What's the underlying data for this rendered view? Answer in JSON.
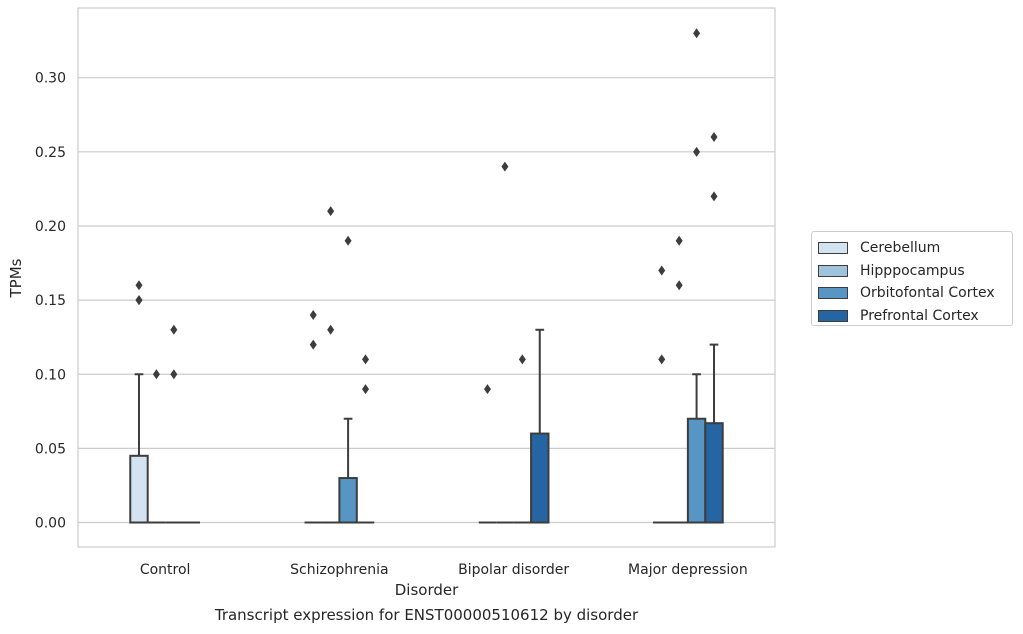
{
  "chart_data": {
    "type": "box",
    "title": "",
    "caption": "Transcript expression for ENST00000510612 by disorder",
    "xlabel": "Disorder",
    "ylabel": "TPMs",
    "ylim": [
      -0.0165,
      0.347
    ],
    "yticks": [
      "0.00",
      "0.05",
      "0.10",
      "0.15",
      "0.20",
      "0.25",
      "0.30"
    ],
    "grid": true,
    "legend_position": "right",
    "categories": [
      "Control",
      "Schizophrenia",
      "Bipolar disorder",
      "Major depression"
    ],
    "series": [
      {
        "name": "Cerebellum",
        "color": "#d3e3f2",
        "boxes": [
          {
            "q1": 0,
            "median": 0,
            "q3": 0.045,
            "whisker_low": 0,
            "whisker_high": 0.1,
            "outliers": [
              0.15,
              0.16,
              0.15
            ]
          },
          {
            "q1": 0,
            "median": 0,
            "q3": 0,
            "whisker_low": 0,
            "whisker_high": 0,
            "outliers": [
              0.14,
              0.12
            ]
          },
          {
            "q1": 0,
            "median": 0,
            "q3": 0,
            "whisker_low": 0,
            "whisker_high": 0,
            "outliers": [
              0.09
            ]
          },
          {
            "q1": 0,
            "median": 0,
            "q3": 0,
            "whisker_low": 0,
            "whisker_high": 0,
            "outliers": [
              0.17,
              0.11
            ]
          }
        ]
      },
      {
        "name": "Hipppocampus",
        "color": "#9fc3dc",
        "boxes": [
          {
            "q1": 0,
            "median": 0,
            "q3": 0,
            "whisker_low": 0,
            "whisker_high": 0,
            "outliers": [
              0.1
            ]
          },
          {
            "q1": 0,
            "median": 0,
            "q3": 0,
            "whisker_low": 0,
            "whisker_high": 0,
            "outliers": [
              0.21,
              0.13
            ]
          },
          {
            "q1": 0,
            "median": 0,
            "q3": 0,
            "whisker_low": 0,
            "whisker_high": 0,
            "outliers": [
              0.24
            ]
          },
          {
            "q1": 0,
            "median": 0,
            "q3": 0,
            "whisker_low": 0,
            "whisker_high": 0,
            "outliers": [
              0.19,
              0.16
            ]
          }
        ]
      },
      {
        "name": "Orbitofontal Cortex",
        "color": "#5695c4",
        "boxes": [
          {
            "q1": 0,
            "median": 0,
            "q3": 0,
            "whisker_low": 0,
            "whisker_high": 0,
            "outliers": [
              0.13,
              0.1
            ]
          },
          {
            "q1": 0,
            "median": 0,
            "q3": 0.03,
            "whisker_low": 0,
            "whisker_high": 0.07,
            "outliers": [
              0.19
            ]
          },
          {
            "q1": 0,
            "median": 0,
            "q3": 0,
            "whisker_low": 0,
            "whisker_high": 0,
            "outliers": [
              0.11
            ]
          },
          {
            "q1": 0,
            "median": 0,
            "q3": 0.07,
            "whisker_low": 0,
            "whisker_high": 0.1,
            "outliers": [
              0.33,
              0.25
            ]
          }
        ]
      },
      {
        "name": "Prefrontal Cortex",
        "color": "#2565a3",
        "boxes": [
          {
            "q1": 0,
            "median": 0,
            "q3": 0,
            "whisker_low": 0,
            "whisker_high": 0,
            "outliers": []
          },
          {
            "q1": 0,
            "median": 0,
            "q3": 0,
            "whisker_low": 0,
            "whisker_high": 0,
            "outliers": [
              0.11,
              0.09
            ]
          },
          {
            "q1": 0,
            "median": 0,
            "q3": 0.06,
            "whisker_low": 0,
            "whisker_high": 0.13,
            "outliers": []
          },
          {
            "q1": 0,
            "median": 0,
            "q3": 0.067,
            "whisker_low": 0,
            "whisker_high": 0.12,
            "outliers": [
              0.26,
              0.22
            ]
          }
        ]
      }
    ]
  }
}
